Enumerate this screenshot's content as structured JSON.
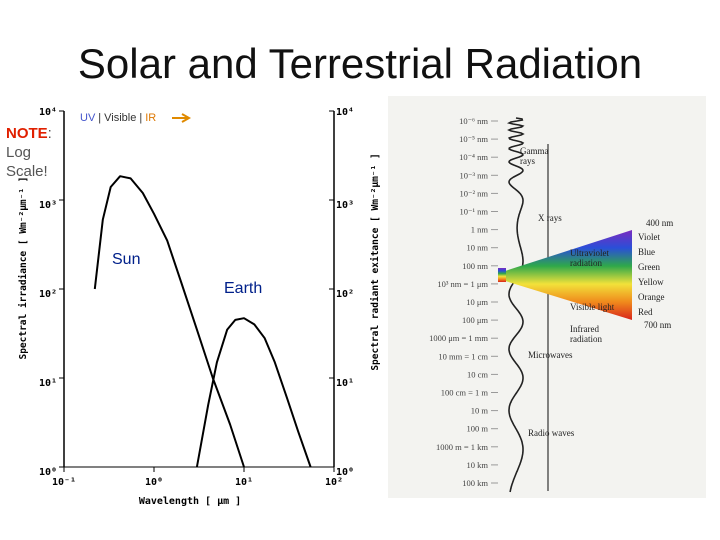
{
  "title": "Solar and Terrestrial Radiation",
  "note": {
    "label": "NOTE",
    "colon": ":",
    "line2": "Log",
    "line3": "Scale!"
  },
  "bands": {
    "uv": "UV",
    "visible": "Visible",
    "ir": "IR",
    "sep": "|"
  },
  "labels": {
    "sun": "Sun",
    "earth": "Earth"
  },
  "colors": {
    "uv": "#4455cc",
    "ir": "#dd7700",
    "note": "#e02000",
    "curve_labels": "#00208a",
    "arrow": "#e08a00"
  },
  "chart_data": {
    "type": "line",
    "title": "Solar and Terrestrial Radiation",
    "xlabel": "Wavelength  [ μm ]",
    "ylabel_left": "Spectral irradiance  [ Wm⁻²μm⁻¹ ]",
    "ylabel_right": "Spectral radiant exitance   [ Wm⁻²μm⁻¹ ]",
    "xscale": "log",
    "yscale": "log",
    "xlim": [
      0.1,
      100
    ],
    "ylim": [
      1,
      10000
    ],
    "x_ticks": [
      {
        "value": 0.1,
        "label": "10⁻¹"
      },
      {
        "value": 1,
        "label": "10⁰"
      },
      {
        "value": 10,
        "label": "10¹"
      },
      {
        "value": 100,
        "label": "10²"
      }
    ],
    "y_ticks": [
      {
        "value": 1,
        "label": "10⁰"
      },
      {
        "value": 10,
        "label": "10¹"
      },
      {
        "value": 100,
        "label": "10²"
      },
      {
        "value": 1000,
        "label": "10³"
      },
      {
        "value": 10000,
        "label": "10⁴"
      }
    ],
    "series": [
      {
        "name": "Sun",
        "x": [
          0.22,
          0.27,
          0.33,
          0.42,
          0.55,
          0.75,
          1.0,
          1.4,
          2.0,
          3.0,
          4.5,
          7.0,
          10.0
        ],
        "y": [
          100,
          600,
          1400,
          1850,
          1750,
          1200,
          700,
          350,
          120,
          35,
          10,
          3,
          1
        ]
      },
      {
        "name": "Earth",
        "x": [
          3.0,
          4.0,
          5.0,
          6.5,
          8.0,
          10.0,
          13.0,
          17.0,
          22.0,
          30.0,
          40.0,
          55.0
        ],
        "y": [
          1,
          5,
          15,
          35,
          45,
          47,
          40,
          28,
          15,
          6,
          2.5,
          1
        ]
      }
    ]
  },
  "spectrum": {
    "wavelength_labels": [
      "10⁻⁶ nm",
      "10⁻⁵ nm",
      "10⁻⁴ nm",
      "10⁻³ nm",
      "10⁻² nm",
      "10⁻¹ nm",
      "1 nm",
      "10 nm",
      "100 nm",
      "10³ nm = 1 μm",
      "10 μm",
      "100 μm",
      "1000 μm = 1 mm",
      "10 mm = 1 cm",
      "10 cm",
      "100 cm = 1 m",
      "10 m",
      "100 m",
      "1000 m = 1 km",
      "10 km",
      "100 km"
    ],
    "regions": [
      "Gamma rays",
      "X rays",
      "Ultraviolet radiation",
      "Visible light",
      "Infrared radiation",
      "Microwaves",
      "Radio waves"
    ],
    "colors": [
      "Violet",
      "Blue",
      "Green",
      "Yellow",
      "Orange",
      "Red"
    ],
    "range_top": "400 nm",
    "range_bottom": "700 nm"
  }
}
